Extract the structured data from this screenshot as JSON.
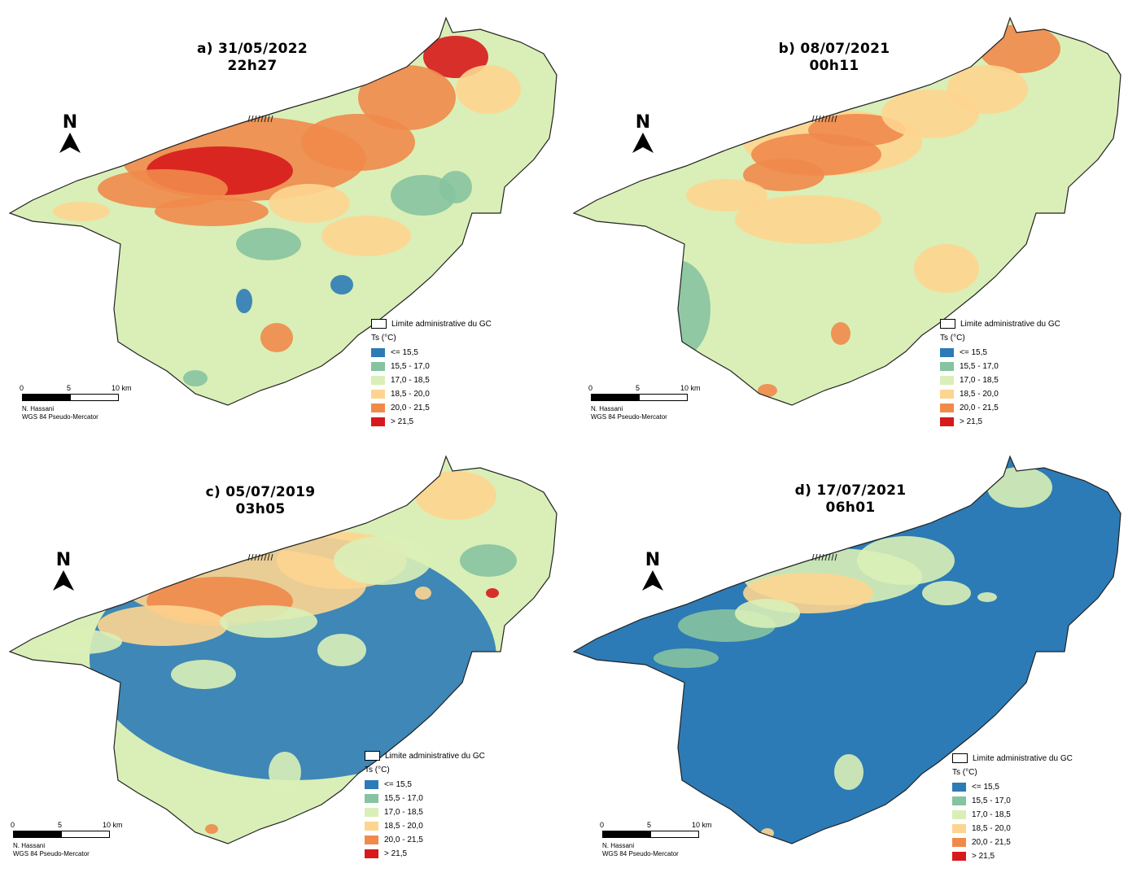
{
  "panels": [
    {
      "id": "a",
      "title_line1": "a) 31/05/2022",
      "title_line2": "22h27",
      "theme": "warm"
    },
    {
      "id": "b",
      "title_line1": "b) 08/07/2021",
      "title_line2": "00h11",
      "theme": "mild"
    },
    {
      "id": "c",
      "title_line1": "c) 05/07/2019",
      "title_line2": "03h05",
      "theme": "cool"
    },
    {
      "id": "d",
      "title_line1": "d) 17/07/2021",
      "title_line2": "06h01",
      "theme": "cold"
    }
  ],
  "north_arrow": {
    "letter": "N"
  },
  "legend": {
    "boundary_label": "Limite administrative du GC",
    "ts_title": "Ts (°C)",
    "classes": [
      {
        "label": "<= 15,5",
        "color": "#2c7bb6"
      },
      {
        "label": "15,5 - 17,0",
        "color": "#86c3a0"
      },
      {
        "label": "17,0 - 18,5",
        "color": "#d9efb7"
      },
      {
        "label": "18,5 - 20,0",
        "color": "#fdd590"
      },
      {
        "label": "20,0 - 21,5",
        "color": "#f08a4b"
      },
      {
        "label": "> 21,5",
        "color": "#d7191c"
      }
    ]
  },
  "scale_bar": {
    "tick_0": "0",
    "tick_5": "5",
    "tick_10": "10 km"
  },
  "credits": {
    "author": "N. Hassani",
    "crs": "WGS 84 Pseudo-Mercator"
  }
}
